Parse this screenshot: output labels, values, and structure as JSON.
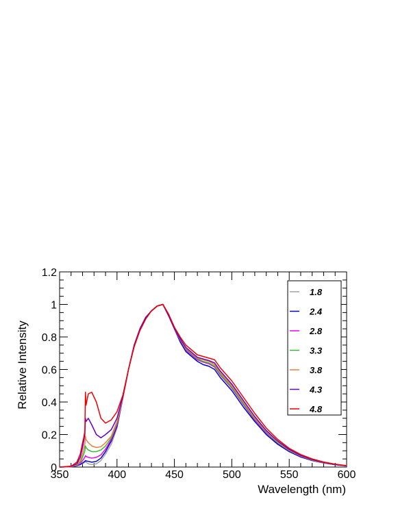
{
  "chart_data": {
    "type": "line",
    "xlabel": "Wavelength (nm)",
    "ylabel": "Relative Intensity",
    "xlim": [
      350,
      600
    ],
    "ylim": [
      0,
      1.2
    ],
    "x_ticks": [
      "350",
      "400",
      "450",
      "500",
      "550",
      "600"
    ],
    "y_ticks": [
      "0",
      "0.2",
      "0.4",
      "0.6",
      "0.8",
      "1",
      "1.2"
    ],
    "grid": false,
    "legend_position": "top-right",
    "x": [
      350,
      360,
      365,
      368,
      370,
      371,
      372,
      372.5,
      373,
      375,
      378,
      382,
      386,
      390,
      395,
      400,
      405,
      410,
      415,
      420,
      425,
      430,
      435,
      440,
      445,
      450,
      455,
      460,
      465,
      470,
      475,
      480,
      485,
      490,
      495,
      500,
      510,
      520,
      530,
      540,
      550,
      560,
      570,
      580,
      590,
      600
    ],
    "series": [
      {
        "name": "1.8",
        "color": "#a0a0a0",
        "y": [
          0,
          0.002,
          0.008,
          0.015,
          0.02,
          0.025,
          0.03,
          0.035,
          0.03,
          0.02,
          0.015,
          0.02,
          0.04,
          0.08,
          0.14,
          0.24,
          0.42,
          0.6,
          0.75,
          0.85,
          0.92,
          0.96,
          0.99,
          1.0,
          0.93,
          0.85,
          0.79,
          0.73,
          0.7,
          0.67,
          0.66,
          0.65,
          0.63,
          0.58,
          0.54,
          0.5,
          0.4,
          0.3,
          0.22,
          0.155,
          0.105,
          0.07,
          0.045,
          0.028,
          0.016,
          0.008
        ]
      },
      {
        "name": "2.4",
        "color": "#0000cc",
        "y": [
          0,
          0.002,
          0.008,
          0.015,
          0.025,
          0.03,
          0.035,
          0.04,
          0.038,
          0.035,
          0.03,
          0.035,
          0.055,
          0.095,
          0.16,
          0.25,
          0.42,
          0.6,
          0.75,
          0.85,
          0.92,
          0.96,
          0.99,
          1.0,
          0.93,
          0.85,
          0.77,
          0.71,
          0.68,
          0.65,
          0.63,
          0.62,
          0.6,
          0.55,
          0.51,
          0.47,
          0.37,
          0.28,
          0.2,
          0.14,
          0.095,
          0.062,
          0.04,
          0.025,
          0.014,
          0.007
        ]
      },
      {
        "name": "2.8",
        "color": "#ee00ee",
        "y": [
          0,
          0.002,
          0.01,
          0.02,
          0.04,
          0.05,
          0.06,
          0.07,
          0.065,
          0.06,
          0.055,
          0.06,
          0.075,
          0.11,
          0.17,
          0.26,
          0.42,
          0.6,
          0.75,
          0.85,
          0.92,
          0.96,
          0.99,
          1.0,
          0.93,
          0.85,
          0.78,
          0.72,
          0.69,
          0.66,
          0.645,
          0.635,
          0.615,
          0.565,
          0.525,
          0.485,
          0.385,
          0.29,
          0.21,
          0.148,
          0.1,
          0.066,
          0.042,
          0.026,
          0.015,
          0.0075
        ]
      },
      {
        "name": "3.3",
        "color": "#33bb33",
        "y": [
          0,
          0.003,
          0.012,
          0.03,
          0.06,
          0.08,
          0.1,
          0.13,
          0.12,
          0.105,
          0.095,
          0.095,
          0.105,
          0.13,
          0.18,
          0.27,
          0.42,
          0.6,
          0.75,
          0.85,
          0.92,
          0.96,
          0.99,
          1.0,
          0.93,
          0.85,
          0.785,
          0.725,
          0.695,
          0.665,
          0.65,
          0.64,
          0.62,
          0.57,
          0.53,
          0.49,
          0.39,
          0.295,
          0.215,
          0.15,
          0.102,
          0.068,
          0.043,
          0.027,
          0.015,
          0.0078
        ]
      },
      {
        "name": "3.8",
        "color": "#f07d3c",
        "y": [
          0,
          0.003,
          0.015,
          0.04,
          0.08,
          0.11,
          0.14,
          0.19,
          0.17,
          0.15,
          0.13,
          0.12,
          0.125,
          0.15,
          0.19,
          0.28,
          0.42,
          0.6,
          0.75,
          0.85,
          0.92,
          0.96,
          0.99,
          1.0,
          0.93,
          0.85,
          0.79,
          0.73,
          0.7,
          0.67,
          0.66,
          0.65,
          0.63,
          0.58,
          0.54,
          0.5,
          0.4,
          0.3,
          0.22,
          0.155,
          0.105,
          0.07,
          0.045,
          0.028,
          0.016,
          0.008
        ]
      },
      {
        "name": "4.3",
        "color": "#6600cc",
        "y": [
          0,
          0.004,
          0.02,
          0.06,
          0.12,
          0.16,
          0.2,
          0.3,
          0.28,
          0.3,
          0.26,
          0.2,
          0.18,
          0.2,
          0.23,
          0.3,
          0.43,
          0.6,
          0.75,
          0.85,
          0.92,
          0.96,
          0.99,
          1.0,
          0.93,
          0.85,
          0.79,
          0.735,
          0.705,
          0.675,
          0.665,
          0.655,
          0.64,
          0.59,
          0.55,
          0.51,
          0.41,
          0.31,
          0.225,
          0.16,
          0.108,
          0.072,
          0.046,
          0.029,
          0.016,
          0.008
        ]
      },
      {
        "name": "4.8",
        "color": "#ee0000",
        "y": [
          0,
          0.005,
          0.03,
          0.08,
          0.15,
          0.18,
          0.22,
          0.46,
          0.38,
          0.45,
          0.46,
          0.4,
          0.3,
          0.27,
          0.29,
          0.34,
          0.44,
          0.6,
          0.74,
          0.84,
          0.91,
          0.96,
          0.99,
          1.0,
          0.94,
          0.86,
          0.8,
          0.75,
          0.72,
          0.69,
          0.68,
          0.67,
          0.66,
          0.61,
          0.57,
          0.53,
          0.43,
          0.33,
          0.24,
          0.17,
          0.115,
          0.077,
          0.05,
          0.031,
          0.018,
          0.009
        ]
      }
    ]
  }
}
